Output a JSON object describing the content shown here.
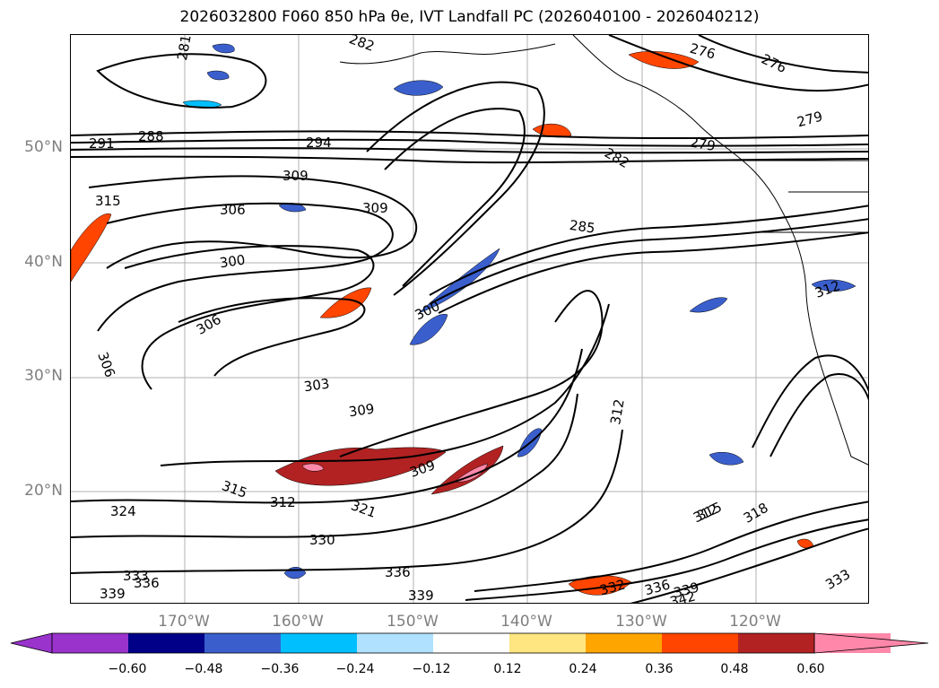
{
  "title": "2026032800 F060 850 hPa θe, IVT Landfall PC (2026040100 - 2026040212)",
  "lat_labels": [
    "50°N",
    "40°N",
    "30°N",
    "20°N"
  ],
  "lon_labels": [
    "170°W",
    "160°W",
    "150°W",
    "140°W",
    "130°W",
    "120°W"
  ],
  "colorbar": {
    "ticks": [
      "−0.60",
      "−0.48",
      "−0.36",
      "−0.24",
      "−0.12",
      "0.12",
      "0.24",
      "0.36",
      "0.48",
      "0.60"
    ],
    "colors": [
      "#9933cc",
      "#000088",
      "#3a5fcd",
      "#00bfff",
      "#b0e2ff",
      "#ffffff",
      "#ffe680",
      "#ffa500",
      "#ff4500",
      "#b22222",
      "#ff88aa"
    ]
  },
  "contour_labels": [
    "281",
    "282",
    "276",
    "276",
    "279",
    "279",
    "291",
    "288",
    "294",
    "282",
    "309",
    "309",
    "315",
    "306",
    "285",
    "300",
    "300",
    "306",
    "312",
    "306",
    "303",
    "309",
    "309",
    "312",
    "315",
    "312",
    "321",
    "318",
    "324",
    "330",
    "336",
    "333",
    "336",
    "339",
    "339",
    "332",
    "336",
    "342",
    "339",
    "333",
    "312",
    "315"
  ]
}
